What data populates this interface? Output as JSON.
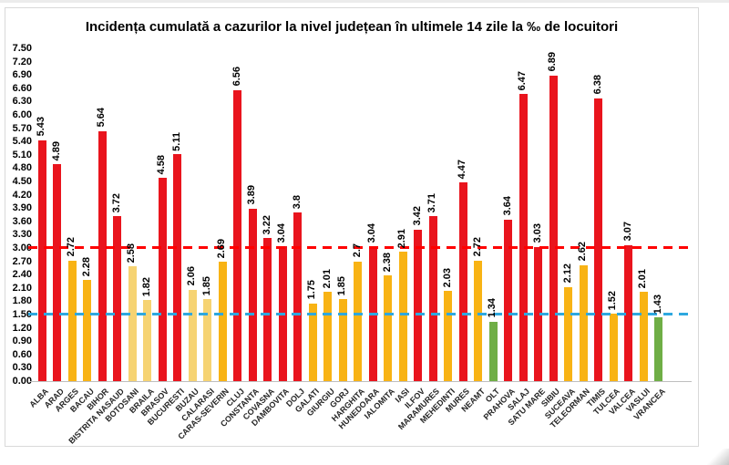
{
  "chart_data": {
    "type": "bar",
    "title": "Incidența cumulată a cazurilor la nivel județean în ultimele 14 zile la ‰ de locuitori",
    "xlabel": "",
    "ylabel": "",
    "ylim": [
      0,
      7.5
    ],
    "ytick_step": 0.3,
    "ytick_labels": [
      "7.50",
      "7.20",
      "6.90",
      "6.60",
      "6.30",
      "6.00",
      "5.70",
      "5.40",
      "5.10",
      "4.80",
      "4.50",
      "4.20",
      "3.90",
      "3.60",
      "3.30",
      "3.00",
      "2.70",
      "2.40",
      "2.10",
      "1.80",
      "1.50",
      "1.20",
      "0.90",
      "0.60",
      "0.30",
      "0.00"
    ],
    "grid": false,
    "legend": false,
    "categories": [
      "ALBA",
      "ARAD",
      "ARGES",
      "BACAU",
      "BIHOR",
      "BISTRITA NASAUD",
      "BOTOSANI",
      "BRAILA",
      "BRASOV",
      "BUCURESTI",
      "BUZAU",
      "CALARASI",
      "CARAS-SEVERIN",
      "CLUJ",
      "CONSTANTA",
      "COVASNA",
      "DAMBOVITA",
      "DOLJ",
      "GALATI",
      "GIURGIU",
      "GORJ",
      "HARGHITA",
      "HUNEDOARA",
      "IALOMITA",
      "IASI",
      "ILFOV",
      "MARAMURES",
      "MEHEDINTI",
      "MURES",
      "NEAMT",
      "OLT",
      "PRAHOVA",
      "SALAJ",
      "SATU MARE",
      "SIBIU",
      "SUCEAVA",
      "TELEORMAN",
      "TIMIS",
      "TULCEA",
      "VALCEA",
      "VASLUI",
      "VRANCEA"
    ],
    "values": [
      5.43,
      4.89,
      2.72,
      2.28,
      5.64,
      3.72,
      2.58,
      1.82,
      4.58,
      5.11,
      2.06,
      1.85,
      2.69,
      6.56,
      3.89,
      3.22,
      3.04,
      3.8,
      1.75,
      2.01,
      1.85,
      2.7,
      3.04,
      2.38,
      2.91,
      3.42,
      3.71,
      2.03,
      4.47,
      2.72,
      1.34,
      3.64,
      6.47,
      3.03,
      6.89,
      2.12,
      2.62,
      6.38,
      1.52,
      3.07,
      2.01,
      1.43
    ],
    "value_labels": [
      "5.43",
      "4.89",
      "2.72",
      "2.28",
      "5.64",
      "3.72",
      "2.58",
      "1.82",
      "4.58",
      "5.11",
      "2.06",
      "1.85",
      "2.69",
      "6.56",
      "3.89",
      "3.22",
      "3.04",
      "3.8",
      "1.75",
      "2.01",
      "1.85",
      "2.7",
      "3.04",
      "2.38",
      "2.91",
      "3.42",
      "3.71",
      "2.03",
      "4.47",
      "2.72",
      "1.34",
      "3.64",
      "6.47",
      "3.03",
      "6.89",
      "2.12",
      "2.62",
      "6.38",
      "1.52",
      "3.07",
      "2.01",
      "1.43"
    ],
    "bar_colors": [
      "red",
      "red",
      "gold",
      "gold",
      "red",
      "red",
      "pale",
      "pale",
      "red",
      "red",
      "pale",
      "pale",
      "gold",
      "red",
      "red",
      "red",
      "red",
      "red",
      "gold",
      "gold",
      "gold",
      "gold",
      "red",
      "gold",
      "gold",
      "red",
      "red",
      "gold",
      "red",
      "gold",
      "green",
      "red",
      "red",
      "red",
      "red",
      "gold",
      "gold",
      "red",
      "gold",
      "red",
      "gold",
      "green"
    ],
    "palette": {
      "red": "#E9141D",
      "gold": "#F8B314",
      "pale": "#F6D372",
      "green": "#6FAE46"
    },
    "reference_lines": [
      {
        "name": "threshold-3-line",
        "value": 3.0,
        "color": "#FF0000",
        "style": "dashed"
      },
      {
        "name": "threshold-1-5-line",
        "value": 1.5,
        "color": "#2EA8DF",
        "style": "dashed"
      }
    ]
  }
}
